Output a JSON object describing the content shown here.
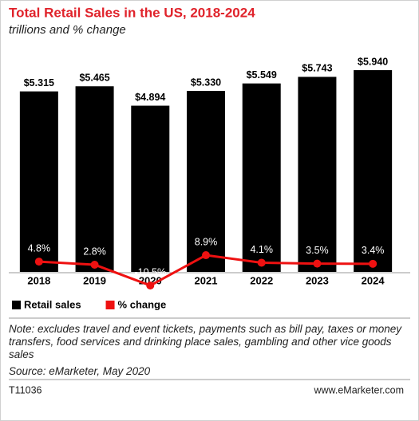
{
  "chart_data": {
    "type": "bar",
    "title": "Total Retail Sales in the US, 2018-2024",
    "subtitle": "trillions and % change",
    "categories": [
      "2018",
      "2019",
      "2020",
      "2021",
      "2022",
      "2023",
      "2024"
    ],
    "series": [
      {
        "name": "Retail sales",
        "color": "#000000",
        "type": "bar",
        "values": [
          5.315,
          5.465,
          4.894,
          5.33,
          5.549,
          5.743,
          5.94
        ],
        "value_labels": [
          "$5.315",
          "$5.465",
          "$4.894",
          "$5.330",
          "$5.549",
          "$5.743",
          "$5.940"
        ]
      },
      {
        "name": "% change",
        "color": "#ee1111",
        "type": "line",
        "axis": "y2",
        "values": [
          4.8,
          2.8,
          -10.5,
          8.9,
          4.1,
          3.5,
          3.4
        ],
        "value_labels": [
          "4.8%",
          "2.8%",
          "-10.5%",
          "8.9%",
          "4.1%",
          "3.5%",
          "3.4%"
        ]
      }
    ],
    "note": "Note: excludes travel and event tickets, payments such as bill pay, taxes or money transfers, food services and drinking place sales, gambling and other vice goods sales",
    "source": "Source: eMarketer, May 2020",
    "code": "T11036",
    "brand": "www.eMarketer.com"
  }
}
